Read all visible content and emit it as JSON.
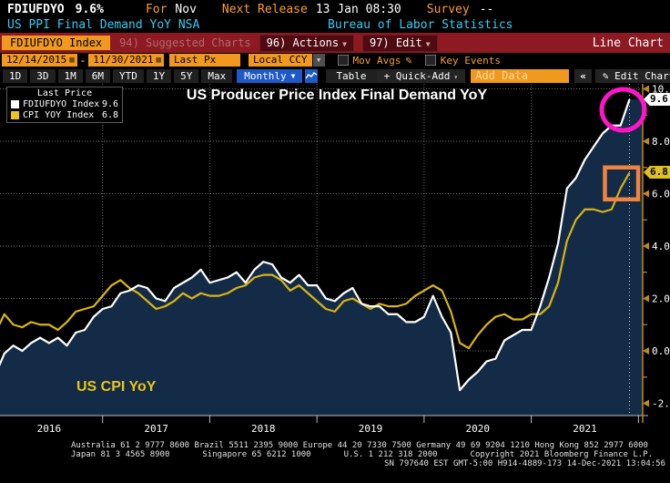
{
  "header": {
    "ticker": "FDIUFDYO",
    "last_value": "9.6%",
    "for_label": "For",
    "for_value": "Nov",
    "next_release_label": "Next Release",
    "next_release_value": "13 Jan 08:30",
    "survey_label": "Survey",
    "survey_value": "--",
    "security_name": "US PPI Final Demand YoY NSA",
    "source": "Bureau of Labor Statistics"
  },
  "menubar": {
    "security_field": "FDIUFDYO Index",
    "suggested_charts": "94) Suggested Charts",
    "actions": "96) Actions",
    "edit": "97) Edit",
    "view_label": "Line Chart"
  },
  "toolbar": {
    "date_from": "12/14/2015",
    "date_to": "11/30/2021",
    "px_type": "Last Px",
    "currency": "Local CCY",
    "mov_avgs_label": "Mov Avgs",
    "key_events_label": "Key Events",
    "ranges": [
      "1D",
      "3D",
      "1M",
      "6M",
      "YTD",
      "1Y",
      "5Y",
      "Max"
    ],
    "frequency": "Monthly",
    "table_label": "Table",
    "quick_add_label": "+ Quick-Add",
    "add_data_placeholder": "Add Data",
    "edit_chart_label": "Edit Chart"
  },
  "legend": {
    "title": "Last Price",
    "items": [
      {
        "label": "FDIUFDYO Index",
        "value": "9.6",
        "color": "#ffffff"
      },
      {
        "label": "CPI YOY Index",
        "value": "6.8",
        "color": "#e8c516"
      }
    ]
  },
  "chart_labels": {
    "title": "US Producer Price Index Final Demand YoY",
    "cpi_annotation": "US CPI YoY",
    "ppi_last_badge": "9.6",
    "cpi_last_badge": "6.8"
  },
  "chart_data": {
    "type": "line",
    "title": "US Producer Price Index Final Demand YoY",
    "x_unit": "month",
    "x_start": "Dec 2015",
    "x_end": "Nov 2021",
    "years": [
      "2016",
      "2017",
      "2018",
      "2019",
      "2020",
      "2021"
    ],
    "y_ticks": [
      10.0,
      8.0,
      6.0,
      4.0,
      2.0,
      0.0,
      -2.0
    ],
    "ylim": [
      -2.9,
      10.6
    ],
    "grid": "dotted",
    "legend_position": "top-left",
    "series": [
      {
        "name": "FDIUFDYO Index",
        "label": "US PPI Final Demand YoY",
        "color": "#ffffff",
        "fill_below": "#132b47",
        "last": 9.6,
        "values": [
          -0.9,
          -0.1,
          0.2,
          0.0,
          0.3,
          0.5,
          0.3,
          0.5,
          0.2,
          0.7,
          0.8,
          1.3,
          1.6,
          1.7,
          2.2,
          2.3,
          2.5,
          2.4,
          2.0,
          1.9,
          2.4,
          2.6,
          2.8,
          3.1,
          2.6,
          2.7,
          2.8,
          3.0,
          2.6,
          3.1,
          3.4,
          3.3,
          2.8,
          2.6,
          2.9,
          2.5,
          2.5,
          2.0,
          1.9,
          2.2,
          2.4,
          1.8,
          1.7,
          1.7,
          1.4,
          1.4,
          1.1,
          1.1,
          1.3,
          2.1,
          1.3,
          0.7,
          -1.5,
          -1.1,
          -0.8,
          -0.4,
          -0.3,
          0.4,
          0.6,
          0.8,
          0.8,
          1.7,
          2.8,
          4.1,
          6.2,
          6.6,
          7.3,
          7.8,
          8.3,
          8.6,
          8.6,
          9.6
        ]
      },
      {
        "name": "CPI YOY Index",
        "label": "US CPI YoY",
        "color": "#d8b413",
        "last": 6.8,
        "values": [
          0.7,
          1.4,
          1.0,
          0.9,
          1.1,
          1.0,
          1.0,
          0.8,
          1.1,
          1.5,
          1.6,
          1.7,
          2.1,
          2.5,
          2.7,
          2.4,
          2.2,
          1.9,
          1.6,
          1.7,
          1.9,
          2.2,
          2.0,
          2.2,
          2.1,
          2.1,
          2.2,
          2.4,
          2.5,
          2.8,
          2.9,
          2.9,
          2.7,
          2.3,
          2.5,
          2.2,
          1.9,
          1.6,
          1.5,
          1.9,
          2.0,
          1.8,
          1.6,
          1.8,
          1.7,
          1.7,
          1.8,
          2.1,
          2.3,
          2.5,
          2.3,
          1.5,
          0.3,
          0.1,
          0.6,
          1.0,
          1.3,
          1.4,
          1.2,
          1.2,
          1.4,
          1.4,
          1.7,
          2.6,
          4.2,
          5.0,
          5.4,
          5.4,
          5.3,
          5.4,
          6.2,
          6.8
        ]
      }
    ],
    "annotations": [
      {
        "type": "ellipse",
        "color": "#ff14c8",
        "target": "last PPI point"
      },
      {
        "type": "rect",
        "color": "#ef8340",
        "target": "last CPI point"
      }
    ],
    "axis_color": "#c08a12"
  },
  "footer": {
    "line1": "Australia 61 2 9777 8600 Brazil 5511 2395 9000 Europe 44 20 7330 7500 Germany 49 69 9204 1210 Hong Kong 852 2977 6000",
    "line2_japan": "Japan 81 3 4565 8900",
    "line2_singapore": "Singapore 65 6212 1000",
    "line2_us": "U.S. 1 212 318 2000",
    "line2_copyright": "Copyright 2021 Bloomberg Finance L.P.",
    "line3": "SN 797640 EST  GMT-5:00 H914-4889-173 14-Dec-2021 13:04:56"
  }
}
